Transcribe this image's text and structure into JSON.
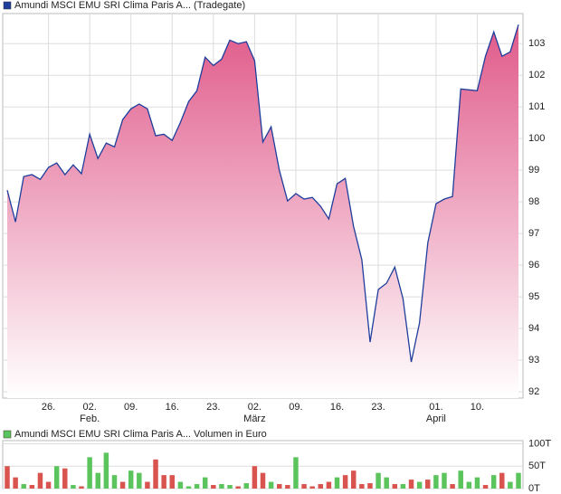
{
  "chart_data": [
    {
      "type": "area",
      "legend": "Amundi MSCI EMU SRI Clima Paris A... (Tradegate)",
      "legend_color": "#1f3e9c",
      "color": "#1f3e9c",
      "fill_color": "#e05a8a",
      "values": [
        98.37,
        97.37,
        98.8,
        98.86,
        98.71,
        99.09,
        99.23,
        98.86,
        99.17,
        98.89,
        100.14,
        99.37,
        99.86,
        99.74,
        100.6,
        100.94,
        101.09,
        100.94,
        100.09,
        100.14,
        99.94,
        100.51,
        101.17,
        101.51,
        102.57,
        102.31,
        102.51,
        103.11,
        103.0,
        103.06,
        102.46,
        99.89,
        100.37,
        99.0,
        98.03,
        98.26,
        98.09,
        98.14,
        97.86,
        97.46,
        98.57,
        98.74,
        97.23,
        96.17,
        93.57,
        95.23,
        95.43,
        95.94,
        94.94,
        92.94,
        94.17,
        96.71,
        97.94,
        98.09,
        98.17,
        101.57,
        101.54,
        101.51,
        102.6,
        103.37,
        102.6,
        102.74,
        103.6
      ],
      "xlim": [
        0,
        62
      ],
      "xticks": [
        {
          "value": 5,
          "label": "26."
        },
        {
          "value": 10,
          "label": "02."
        },
        {
          "value": 15,
          "label": "09."
        },
        {
          "value": 20,
          "label": "16."
        },
        {
          "value": 25,
          "label": "23."
        },
        {
          "value": 30,
          "label": "02."
        },
        {
          "value": 35,
          "label": "09."
        },
        {
          "value": 40,
          "label": "16."
        },
        {
          "value": 45,
          "label": "23."
        },
        {
          "value": 52,
          "label": "01."
        },
        {
          "value": 57,
          "label": "10."
        }
      ],
      "month_ticks": [
        {
          "value": 10,
          "label": "Feb."
        },
        {
          "value": 30,
          "label": "März"
        },
        {
          "value": 52,
          "label": "April"
        }
      ],
      "ylim": [
        91.8,
        103.95
      ],
      "yticks": [
        92,
        93,
        94,
        95,
        96,
        97,
        98,
        99,
        100,
        101,
        102,
        103
      ],
      "grid": true
    },
    {
      "type": "bar",
      "legend": "Amundi MSCI EMU SRI Clima Paris A... Volumen in Euro",
      "legend_color": "#5cc45c",
      "values": [
        50,
        25,
        10,
        8,
        35,
        15,
        50,
        45,
        8,
        5,
        70,
        35,
        80,
        30,
        15,
        40,
        35,
        15,
        65,
        30,
        30,
        15,
        5,
        10,
        25,
        8,
        10,
        8,
        5,
        12,
        50,
        35,
        15,
        10,
        8,
        70,
        10,
        5,
        10,
        15,
        25,
        30,
        40,
        10,
        12,
        35,
        25,
        10,
        10,
        20,
        15,
        20,
        30,
        35,
        10,
        40,
        15,
        25,
        8,
        30,
        35,
        15,
        35
      ],
      "colors": [
        "#d9534f",
        "#d9534f",
        "#5cc45c",
        "#d9534f",
        "#d9534f",
        "#d9534f",
        "#5cc45c",
        "#d9534f",
        "#5cc45c",
        "#d9534f",
        "#5cc45c",
        "#5cc45c",
        "#5cc45c",
        "#5cc45c",
        "#d9534f",
        "#5cc45c",
        "#5cc45c",
        "#d9534f",
        "#d9534f",
        "#d9534f",
        "#d9534f",
        "#5cc45c",
        "#5cc45c",
        "#5cc45c",
        "#5cc45c",
        "#d9534f",
        "#5cc45c",
        "#5cc45c",
        "#d9534f",
        "#5cc45c",
        "#d9534f",
        "#d9534f",
        "#5cc45c",
        "#d9534f",
        "#d9534f",
        "#5cc45c",
        "#d9534f",
        "#d9534f",
        "#d9534f",
        "#d9534f",
        "#5cc45c",
        "#d9534f",
        "#d9534f",
        "#d9534f",
        "#d9534f",
        "#5cc45c",
        "#5cc45c",
        "#d9534f",
        "#5cc45c",
        "#d9534f",
        "#5cc45c",
        "#d9534f",
        "#5cc45c",
        "#5cc45c",
        "#d9534f",
        "#5cc45c",
        "#5cc45c",
        "#5cc45c",
        "#d9534f",
        "#5cc45c",
        "#d9534f",
        "#5cc45c",
        "#5cc45c"
      ],
      "xlim": [
        0,
        62
      ],
      "ylim": [
        0,
        107
      ],
      "yticks": [
        {
          "value": 0,
          "label": "0T"
        },
        {
          "value": 50,
          "label": "50T"
        },
        {
          "value": 100,
          "label": "100T"
        }
      ],
      "grid": true
    }
  ]
}
